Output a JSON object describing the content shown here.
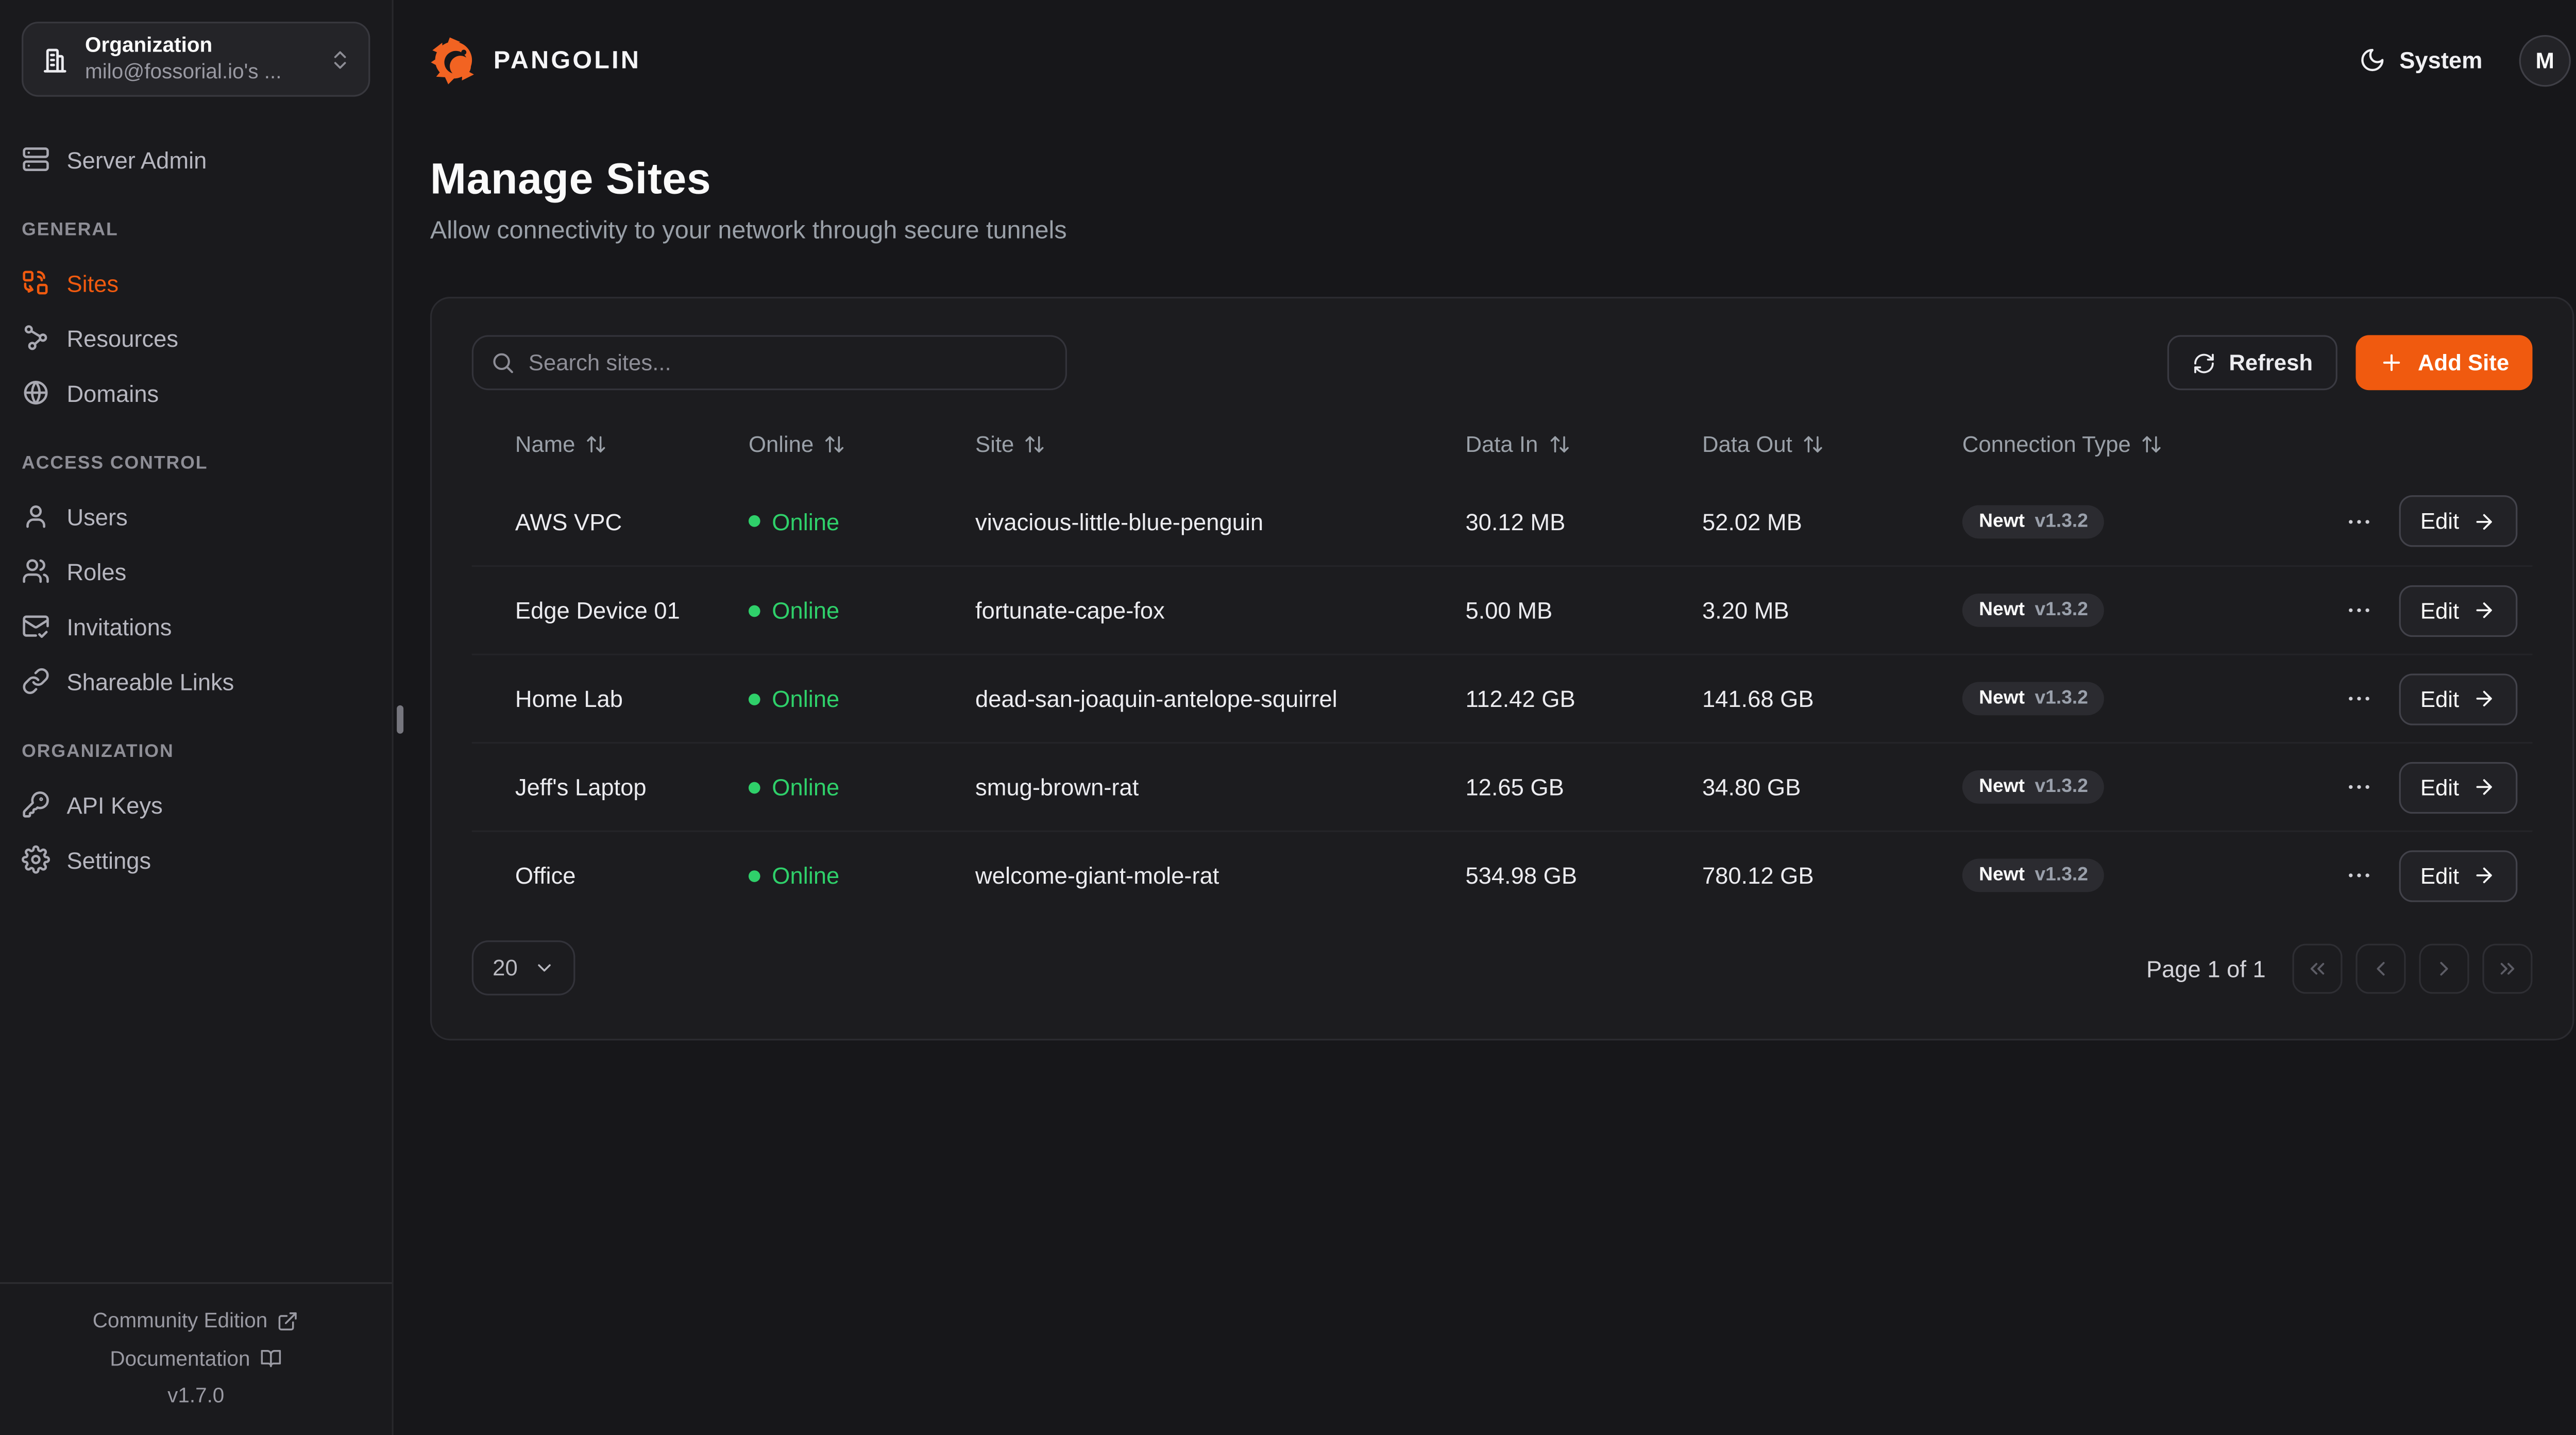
{
  "colors": {
    "accent": "#F05A0F",
    "brand_orange": "#F26322",
    "online_green": "#2FD06A"
  },
  "brand": {
    "name": "PANGOLIN"
  },
  "org_picker": {
    "label": "Organization",
    "value": "milo@fossorial.io's ..."
  },
  "topbar": {
    "theme_label": "System",
    "avatar_initial": "M"
  },
  "sidebar": {
    "sections": [
      {
        "heading": "",
        "items": [
          {
            "label": "Server Admin",
            "icon": "server-icon",
            "active": false
          }
        ]
      },
      {
        "heading": "GENERAL",
        "items": [
          {
            "label": "Sites",
            "icon": "sites-icon",
            "active": true
          },
          {
            "label": "Resources",
            "icon": "resources-icon",
            "active": false
          },
          {
            "label": "Domains",
            "icon": "globe-icon",
            "active": false
          }
        ]
      },
      {
        "heading": "ACCESS CONTROL",
        "items": [
          {
            "label": "Users",
            "icon": "user-icon",
            "active": false
          },
          {
            "label": "Roles",
            "icon": "users-icon",
            "active": false
          },
          {
            "label": "Invitations",
            "icon": "mail-check-icon",
            "active": false
          },
          {
            "label": "Shareable Links",
            "icon": "link-icon",
            "active": false
          }
        ]
      },
      {
        "heading": "ORGANIZATION",
        "items": [
          {
            "label": "API Keys",
            "icon": "key-icon",
            "active": false
          },
          {
            "label": "Settings",
            "icon": "gear-icon",
            "active": false
          }
        ]
      }
    ],
    "footer": {
      "links": [
        {
          "label": "Community Edition",
          "icon": "external-link-icon"
        },
        {
          "label": "Documentation",
          "icon": "book-open-icon"
        }
      ],
      "version": "v1.7.0"
    }
  },
  "page": {
    "title": "Manage Sites",
    "subtitle": "Allow connectivity to your network through secure tunnels"
  },
  "toolbar": {
    "search_placeholder": "Search sites...",
    "refresh_label": "Refresh",
    "add_site_label": "Add Site"
  },
  "table": {
    "edit_label": "Edit",
    "columns": [
      {
        "label": "Name",
        "sortable": true
      },
      {
        "label": "Online",
        "sortable": true
      },
      {
        "label": "Site",
        "sortable": true
      },
      {
        "label": "Data In",
        "sortable": true
      },
      {
        "label": "Data Out",
        "sortable": true
      },
      {
        "label": "Connection Type",
        "sortable": true
      }
    ],
    "rows": [
      {
        "name": "AWS VPC",
        "online": "Online",
        "site": "vivacious-little-blue-penguin",
        "data_in": "30.12 MB",
        "data_out": "52.02 MB",
        "connection": {
          "type": "Newt",
          "version": "v1.3.2"
        }
      },
      {
        "name": "Edge Device 01",
        "online": "Online",
        "site": "fortunate-cape-fox",
        "data_in": "5.00 MB",
        "data_out": "3.20 MB",
        "connection": {
          "type": "Newt",
          "version": "v1.3.2"
        }
      },
      {
        "name": "Home Lab",
        "online": "Online",
        "site": "dead-san-joaquin-antelope-squirrel",
        "data_in": "112.42 GB",
        "data_out": "141.68 GB",
        "connection": {
          "type": "Newt",
          "version": "v1.3.2"
        }
      },
      {
        "name": "Jeff's Laptop",
        "online": "Online",
        "site": "smug-brown-rat",
        "data_in": "12.65 GB",
        "data_out": "34.80 GB",
        "connection": {
          "type": "Newt",
          "version": "v1.3.2"
        }
      },
      {
        "name": "Office",
        "online": "Online",
        "site": "welcome-giant-mole-rat",
        "data_in": "534.98 GB",
        "data_out": "780.12 GB",
        "connection": {
          "type": "Newt",
          "version": "v1.3.2"
        }
      }
    ]
  },
  "pagination": {
    "page_size": "20",
    "status": "Page 1 of 1"
  }
}
